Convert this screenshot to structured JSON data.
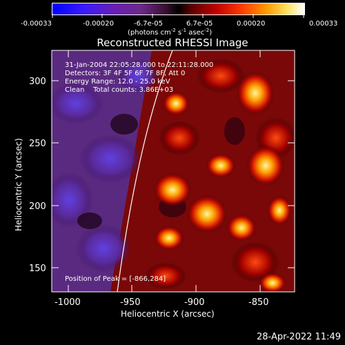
{
  "colorbar": {
    "ticks": [
      "-0.00033",
      "-0.00020",
      "-6.7e-05",
      "6.7e-05",
      "0.00020",
      "0.00033"
    ],
    "unit_label": "(photons cm",
    "unit_exp1": "-2",
    "unit_mid": " s",
    "unit_exp2": "-1",
    "unit_mid2": " asec",
    "unit_exp3": "-2",
    "unit_end": ")"
  },
  "title": "Reconstructed RHESSI Image",
  "info": {
    "time_range": "31-Jan-2004 22:05:28.000 to 22:11:28.000",
    "detectors": "Detectors: 3F 4F 5F 6F 7F 8F, Att 0",
    "energy": "Energy Range: 12.0 - 25.0 keV",
    "method": "Clean    Total counts: 3.86E+03",
    "peak": "Position of Peak = [-866,284]"
  },
  "axes": {
    "xlabel": "Heliocentric X (arcsec)",
    "ylabel": "Heliocentric Y (arcsec)",
    "xticks": [
      "-1000",
      "-950",
      "-900",
      "-850"
    ],
    "yticks": [
      "300",
      "250",
      "200",
      "150"
    ],
    "xrange": [
      -1012,
      -822
    ],
    "yrange": [
      130,
      325
    ]
  },
  "timestamp": "28-Apr-2022 11:49",
  "colors": {
    "background": "#000000",
    "text": "#ffffff"
  }
}
